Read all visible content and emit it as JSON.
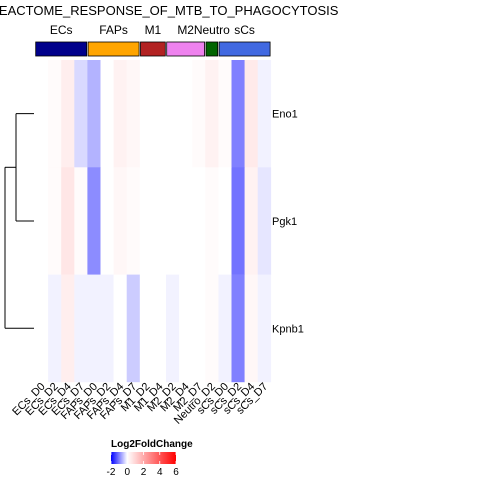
{
  "chart_data": {
    "type": "heatmap",
    "title": "REACTOME_RESPONSE_OF_MTB_TO_PHAGOCYTOSIS",
    "columns": [
      "ECs_D0",
      "ECs_D2",
      "ECs_D4",
      "ECs_D7",
      "FAPs_D0",
      "FAPs_D2",
      "FAPs_D4",
      "FAPs_D7",
      "M1_D2",
      "M1_D4",
      "M2_D2",
      "M2_D4",
      "M2_D7",
      "Neutro_D2",
      "sCs_D0",
      "sCs_D2",
      "sCs_D4",
      "sCs_D7"
    ],
    "rows": [
      "Eno1",
      "Pgk1",
      "Kpnb1"
    ],
    "values": [
      [
        0,
        0.1,
        0.4,
        -0.3,
        -0.6,
        0,
        0.3,
        0.2,
        0,
        0,
        0,
        0,
        0.1,
        0.3,
        0.1,
        -1.0,
        0.5,
        -0.1
      ],
      [
        0,
        0.1,
        0.6,
        0.1,
        -0.9,
        0,
        0.2,
        0.1,
        0,
        0,
        0,
        0,
        0,
        0.1,
        0,
        -1.1,
        0.3,
        -0.2
      ],
      [
        0,
        -0.1,
        0.4,
        -0.1,
        -0.1,
        -0.1,
        0,
        -0.4,
        0,
        0,
        -0.1,
        0,
        0,
        0.1,
        -0.1,
        -1.0,
        0.2,
        -0.1
      ]
    ],
    "groups": [
      {
        "name": "ECs",
        "color": "#00008B",
        "count": 4
      },
      {
        "name": "FAPs",
        "color": "#FFA500",
        "count": 4
      },
      {
        "name": "M1",
        "color": "#B22222",
        "count": 2
      },
      {
        "name": "M2",
        "color": "#EE82EE",
        "count": 3
      },
      {
        "name": "Neutro",
        "color": "#006400",
        "count": 1
      },
      {
        "name": "sCs",
        "color": "#4169E1",
        "count": 4
      }
    ],
    "legend": {
      "title": "Log2FoldChange",
      "ticks": [
        -2,
        0,
        2,
        4,
        6
      ],
      "range": [
        -2,
        6
      ],
      "low_color": "#0000FF",
      "mid_color": "#FFFFFF",
      "high_color": "#FF0000"
    },
    "dendrogram": "Eno1 and Pgk1 cluster first, then join Kpnb1"
  }
}
